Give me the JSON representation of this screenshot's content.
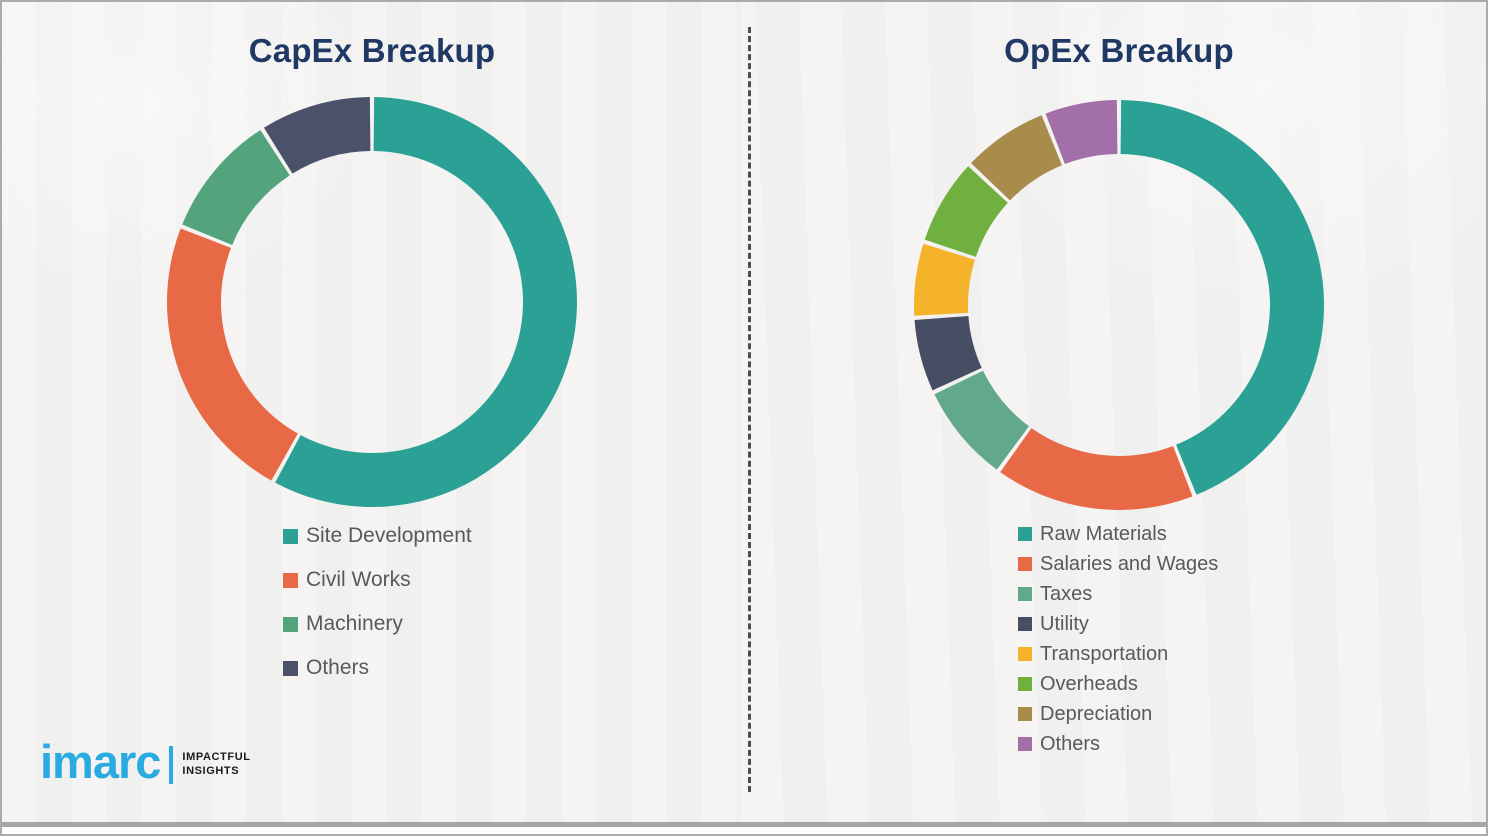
{
  "theme": {
    "background": "#F3F2F1",
    "title_color": "#1F3864",
    "legend_text_color": "#595959",
    "divider_color": "#4D4D4D",
    "logo_blue": "#29ABE2",
    "bottom_bar_gray": "#A6A6A6"
  },
  "chart_data": [
    {
      "type": "pie",
      "subtype": "donut",
      "title": "CapEx Breakup",
      "categories": [
        "Site Development",
        "Civil Works",
        "Machinery",
        "Others"
      ],
      "values": [
        58,
        23,
        10,
        9
      ],
      "unit": "percent-of-whole",
      "colors": [
        "#2BA195",
        "#E76945",
        "#53A47D",
        "#4A5168"
      ],
      "start_angle_deg": 0,
      "direction": "clockwise",
      "legend_position": "below-left"
    },
    {
      "type": "pie",
      "subtype": "donut",
      "title": "OpEx Breakup",
      "categories": [
        "Raw Materials",
        "Salaries and Wages",
        "Taxes",
        "Utility",
        "Transportation",
        "Overheads",
        "Depreciation",
        "Others"
      ],
      "values": [
        44,
        16,
        8,
        6,
        6,
        7,
        7,
        6
      ],
      "unit": "percent-of-whole",
      "colors": [
        "#2BA195",
        "#E76945",
        "#62A98C",
        "#474E63",
        "#F5B32B",
        "#70B03F",
        "#A98B4C",
        "#A36FA9"
      ],
      "start_angle_deg": 0,
      "direction": "clockwise",
      "legend_position": "below-left"
    }
  ],
  "logo": {
    "brand": "imarc",
    "tagline_line1": "IMPACTFUL",
    "tagline_line2": "INSIGHTS"
  }
}
